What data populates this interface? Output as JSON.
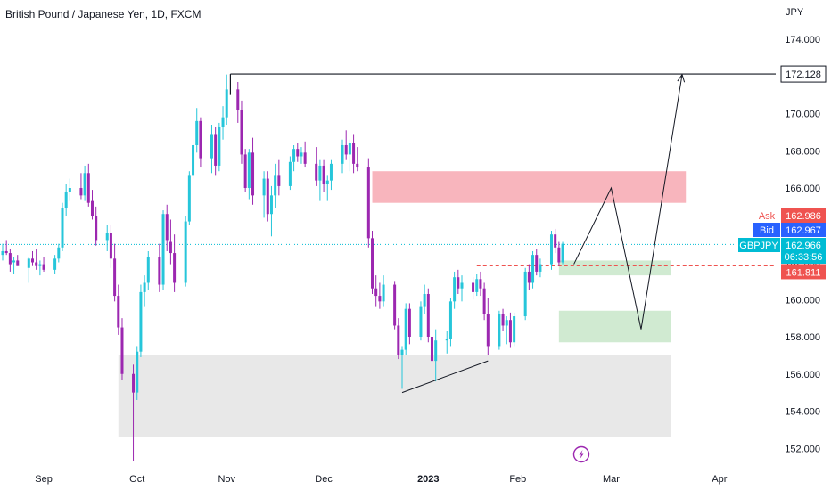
{
  "title": "British Pound / Japanese Yen, 1D, FXCM",
  "currency": "JPY",
  "colors": {
    "up": "#26c6da",
    "down": "#9c27b0",
    "supply_zone": "#f7a8b2",
    "demand_zone": "#c8e6c9",
    "base_zone": "#e6e6e6",
    "ask": "#ef5350",
    "bid": "#2962ff",
    "current": "#00bcd4",
    "stop_level": "#ef5350",
    "drawing": "#131722",
    "lightning": "#9c27b0"
  },
  "quote": {
    "ask_label": "Ask",
    "ask_value": "162.986",
    "bid_label": "Bid",
    "bid_value": "162.967",
    "symbol": "GBPJPY",
    "current_value": "162.966",
    "countdown": "06:33:56",
    "level_value": "161.811",
    "high_value": "172.128"
  },
  "chart_data": {
    "type": "candlestick",
    "title": "British Pound / Japanese Yen, 1D, FXCM",
    "y_unit": "JPY",
    "ylim": [
      151.5,
      175
    ],
    "y_ticks": [
      "174.000",
      "172.000",
      "170.000",
      "168.000",
      "166.000",
      "164.000",
      "162.000",
      "160.000",
      "158.000",
      "156.000",
      "154.000",
      "152.000"
    ],
    "x_labels": [
      "Sep",
      "Oct",
      "Nov",
      "Dec",
      "2023",
      "Feb",
      "Mar",
      "Apr"
    ],
    "x_label_days": [
      11,
      36,
      60,
      86,
      114,
      138,
      163,
      192
    ],
    "day_zero": "2022-08-22",
    "candles": [
      [
        0,
        162.4,
        163.0,
        162.1,
        162.6
      ],
      [
        1,
        162.6,
        163.2,
        162.4,
        162.5
      ],
      [
        2,
        162.5,
        162.7,
        161.5,
        161.9
      ],
      [
        3,
        162.0,
        162.3,
        161.4,
        162.1
      ],
      [
        4,
        162.1,
        162.4,
        161.8,
        161.8
      ],
      [
        7,
        161.7,
        162.3,
        160.9,
        162.2
      ],
      [
        8,
        162.2,
        162.6,
        161.8,
        162.0
      ],
      [
        9,
        162.0,
        162.7,
        161.6,
        161.8
      ],
      [
        10,
        161.8,
        162.1,
        161.3,
        161.9
      ],
      [
        11,
        161.9,
        162.3,
        161.5,
        161.6
      ],
      [
        14,
        161.6,
        162.4,
        161.4,
        162.2
      ],
      [
        15,
        162.2,
        163.0,
        162.0,
        162.8
      ],
      [
        16,
        162.8,
        165.2,
        162.6,
        164.9
      ],
      [
        17,
        164.9,
        166.2,
        164.5,
        165.8
      ],
      [
        18,
        165.8,
        166.5,
        165.3,
        166.0
      ],
      [
        21,
        166.0,
        166.8,
        165.4,
        165.6
      ],
      [
        22,
        165.6,
        167.2,
        165.3,
        166.8
      ],
      [
        23,
        166.8,
        167.3,
        165.0,
        165.2
      ],
      [
        24,
        165.3,
        165.9,
        164.3,
        164.5
      ],
      [
        25,
        164.5,
        165.0,
        162.9,
        163.2
      ],
      [
        28,
        163.2,
        164.0,
        162.6,
        163.6
      ],
      [
        29,
        163.6,
        164.0,
        161.7,
        162.2
      ],
      [
        30,
        162.2,
        163.0,
        159.9,
        160.2
      ],
      [
        31,
        160.2,
        160.8,
        158.1,
        158.5
      ],
      [
        32,
        158.5,
        159.0,
        155.7,
        156.0
      ],
      [
        35,
        156.0,
        156.5,
        151.3,
        155.0
      ],
      [
        36,
        155.0,
        157.5,
        154.6,
        157.2
      ],
      [
        37,
        157.2,
        160.8,
        156.9,
        160.4
      ],
      [
        38,
        160.4,
        161.3,
        159.6,
        160.9
      ],
      [
        39,
        160.9,
        162.6,
        160.5,
        162.3
      ],
      [
        42,
        162.3,
        163.0,
        160.4,
        160.8
      ],
      [
        43,
        160.8,
        164.8,
        160.5,
        164.6
      ],
      [
        44,
        164.6,
        165.1,
        162.6,
        163.2
      ],
      [
        45,
        163.1,
        164.3,
        161.9,
        162.5
      ],
      [
        46,
        162.5,
        163.5,
        160.4,
        160.9
      ],
      [
        49,
        160.9,
        164.5,
        160.7,
        164.2
      ],
      [
        50,
        164.2,
        166.9,
        164.0,
        166.7
      ],
      [
        51,
        166.7,
        168.6,
        166.5,
        168.3
      ],
      [
        52,
        168.3,
        170.3,
        167.9,
        169.6
      ],
      [
        53,
        169.6,
        169.8,
        167.1,
        167.6
      ],
      [
        56,
        167.6,
        169.4,
        166.8,
        168.9
      ],
      [
        57,
        168.9,
        169.3,
        166.7,
        167.2
      ],
      [
        58,
        167.2,
        169.5,
        166.9,
        169.3
      ],
      [
        59,
        169.3,
        170.4,
        168.6,
        169.8
      ],
      [
        60,
        169.8,
        172.1,
        169.4,
        171.3
      ],
      [
        63,
        171.3,
        171.7,
        169.5,
        170.2
      ],
      [
        64,
        170.2,
        170.7,
        167.3,
        167.8
      ],
      [
        65,
        167.8,
        168.1,
        165.8,
        166.0
      ],
      [
        66,
        166.0,
        168.1,
        165.4,
        167.9
      ],
      [
        67,
        167.9,
        168.7,
        165.1,
        165.6
      ],
      [
        70,
        165.6,
        166.9,
        164.4,
        166.5
      ],
      [
        71,
        166.5,
        166.9,
        164.2,
        164.6
      ],
      [
        72,
        164.6,
        166.1,
        163.4,
        165.6
      ],
      [
        73,
        165.6,
        167.3,
        164.9,
        166.7
      ],
      [
        74,
        166.7,
        167.5,
        165.6,
        166.1
      ],
      [
        77,
        166.1,
        167.7,
        165.9,
        167.4
      ],
      [
        78,
        167.4,
        168.3,
        166.9,
        168.1
      ],
      [
        79,
        168.1,
        168.4,
        167.4,
        167.7
      ],
      [
        80,
        167.7,
        168.2,
        167.3,
        167.9
      ],
      [
        81,
        167.9,
        168.5,
        167.1,
        167.3
      ],
      [
        84,
        167.3,
        168.2,
        166.1,
        166.4
      ],
      [
        85,
        166.4,
        167.5,
        165.3,
        167.2
      ],
      [
        86,
        167.2,
        167.5,
        165.8,
        166.2
      ],
      [
        87,
        166.2,
        166.7,
        165.3,
        166.4
      ],
      [
        88,
        166.4,
        167.5,
        165.9,
        167.3
      ],
      [
        91,
        167.3,
        168.6,
        166.8,
        168.3
      ],
      [
        92,
        168.3,
        169.1,
        167.5,
        167.8
      ],
      [
        93,
        167.8,
        168.6,
        166.9,
        168.4
      ],
      [
        94,
        168.4,
        168.9,
        166.8,
        167.3
      ],
      [
        95,
        167.3,
        168.2,
        166.9,
        167.1
      ],
      [
        98,
        167.1,
        167.6,
        162.8,
        163.3
      ],
      [
        99,
        163.3,
        163.7,
        160.3,
        160.6
      ],
      [
        100,
        160.6,
        161.3,
        159.6,
        160.2
      ],
      [
        101,
        160.2,
        160.9,
        159.5,
        159.9
      ],
      [
        102,
        159.9,
        161.3,
        159.6,
        160.8
      ],
      [
        105,
        160.8,
        161.0,
        158.4,
        158.6
      ],
      [
        106,
        158.6,
        159.0,
        156.8,
        157.0
      ],
      [
        107,
        157.0,
        157.5,
        155.2,
        157.3
      ],
      [
        108,
        157.3,
        159.8,
        157.0,
        159.5
      ],
      [
        109,
        159.5,
        159.8,
        157.6,
        158.0
      ],
      [
        112,
        158.0,
        159.9,
        157.8,
        159.6
      ],
      [
        113,
        159.6,
        160.8,
        159.2,
        160.3
      ],
      [
        114,
        160.3,
        160.6,
        157.7,
        158.0
      ],
      [
        115,
        158.0,
        158.4,
        156.4,
        156.7
      ],
      [
        116,
        156.7,
        158.4,
        155.6,
        157.8
      ],
      [
        119,
        157.8,
        158.3,
        157.1,
        157.9
      ],
      [
        120,
        157.9,
        160.1,
        157.5,
        159.9
      ],
      [
        121,
        159.9,
        161.5,
        159.5,
        161.2
      ],
      [
        122,
        161.2,
        161.6,
        160.3,
        160.6
      ],
      [
        123,
        160.6,
        161.3,
        159.9,
        160.9
      ],
      [
        126,
        160.9,
        161.2,
        160.0,
        160.4
      ],
      [
        127,
        160.4,
        161.4,
        160.2,
        161.1
      ],
      [
        128,
        161.1,
        161.5,
        160.2,
        160.6
      ],
      [
        129,
        160.6,
        160.9,
        158.9,
        159.2
      ],
      [
        130,
        159.2,
        160.1,
        157.0,
        157.5
      ],
      [
        133,
        157.5,
        159.4,
        157.3,
        159.2
      ],
      [
        134,
        159.2,
        159.5,
        158.3,
        158.6
      ],
      [
        135,
        158.6,
        159.1,
        157.6,
        158.9
      ],
      [
        136,
        158.9,
        159.3,
        157.4,
        157.7
      ],
      [
        137,
        157.7,
        159.3,
        157.5,
        159.1
      ],
      [
        140,
        159.1,
        161.7,
        158.9,
        161.5
      ],
      [
        141,
        161.5,
        161.9,
        160.5,
        160.9
      ],
      [
        142,
        160.9,
        162.6,
        160.6,
        162.4
      ],
      [
        143,
        162.4,
        162.7,
        161.3,
        161.5
      ],
      [
        144,
        161.5,
        162.2,
        161.2,
        161.9
      ],
      [
        147,
        161.9,
        163.7,
        161.6,
        163.5
      ],
      [
        148,
        163.5,
        163.8,
        162.5,
        162.8
      ],
      [
        149,
        162.8,
        163.1,
        161.8,
        162.0
      ],
      [
        150,
        162.0,
        163.1,
        161.9,
        163.0
      ]
    ],
    "annotations": {
      "high_line": 172.128,
      "current_line": 162.966,
      "level_line": 161.811,
      "projection": [
        [
          153,
          161.9
        ],
        [
          163,
          166.0
        ],
        [
          171,
          158.4
        ],
        [
          182,
          172.1
        ]
      ],
      "trendline": [
        [
          107,
          155.0
        ],
        [
          130,
          156.7
        ]
      ],
      "zones": [
        {
          "kind": "supply",
          "from_day": 99,
          "to_day": 183,
          "top": 166.9,
          "bottom": 165.2
        },
        {
          "kind": "demand",
          "from_day": 149,
          "to_day": 179,
          "top": 162.1,
          "bottom": 161.3
        },
        {
          "kind": "demand",
          "from_day": 149,
          "to_day": 179,
          "top": 159.4,
          "bottom": 157.7
        },
        {
          "kind": "base",
          "from_day": 31,
          "to_day": 179,
          "top": 157.0,
          "bottom": 152.6
        }
      ]
    }
  }
}
